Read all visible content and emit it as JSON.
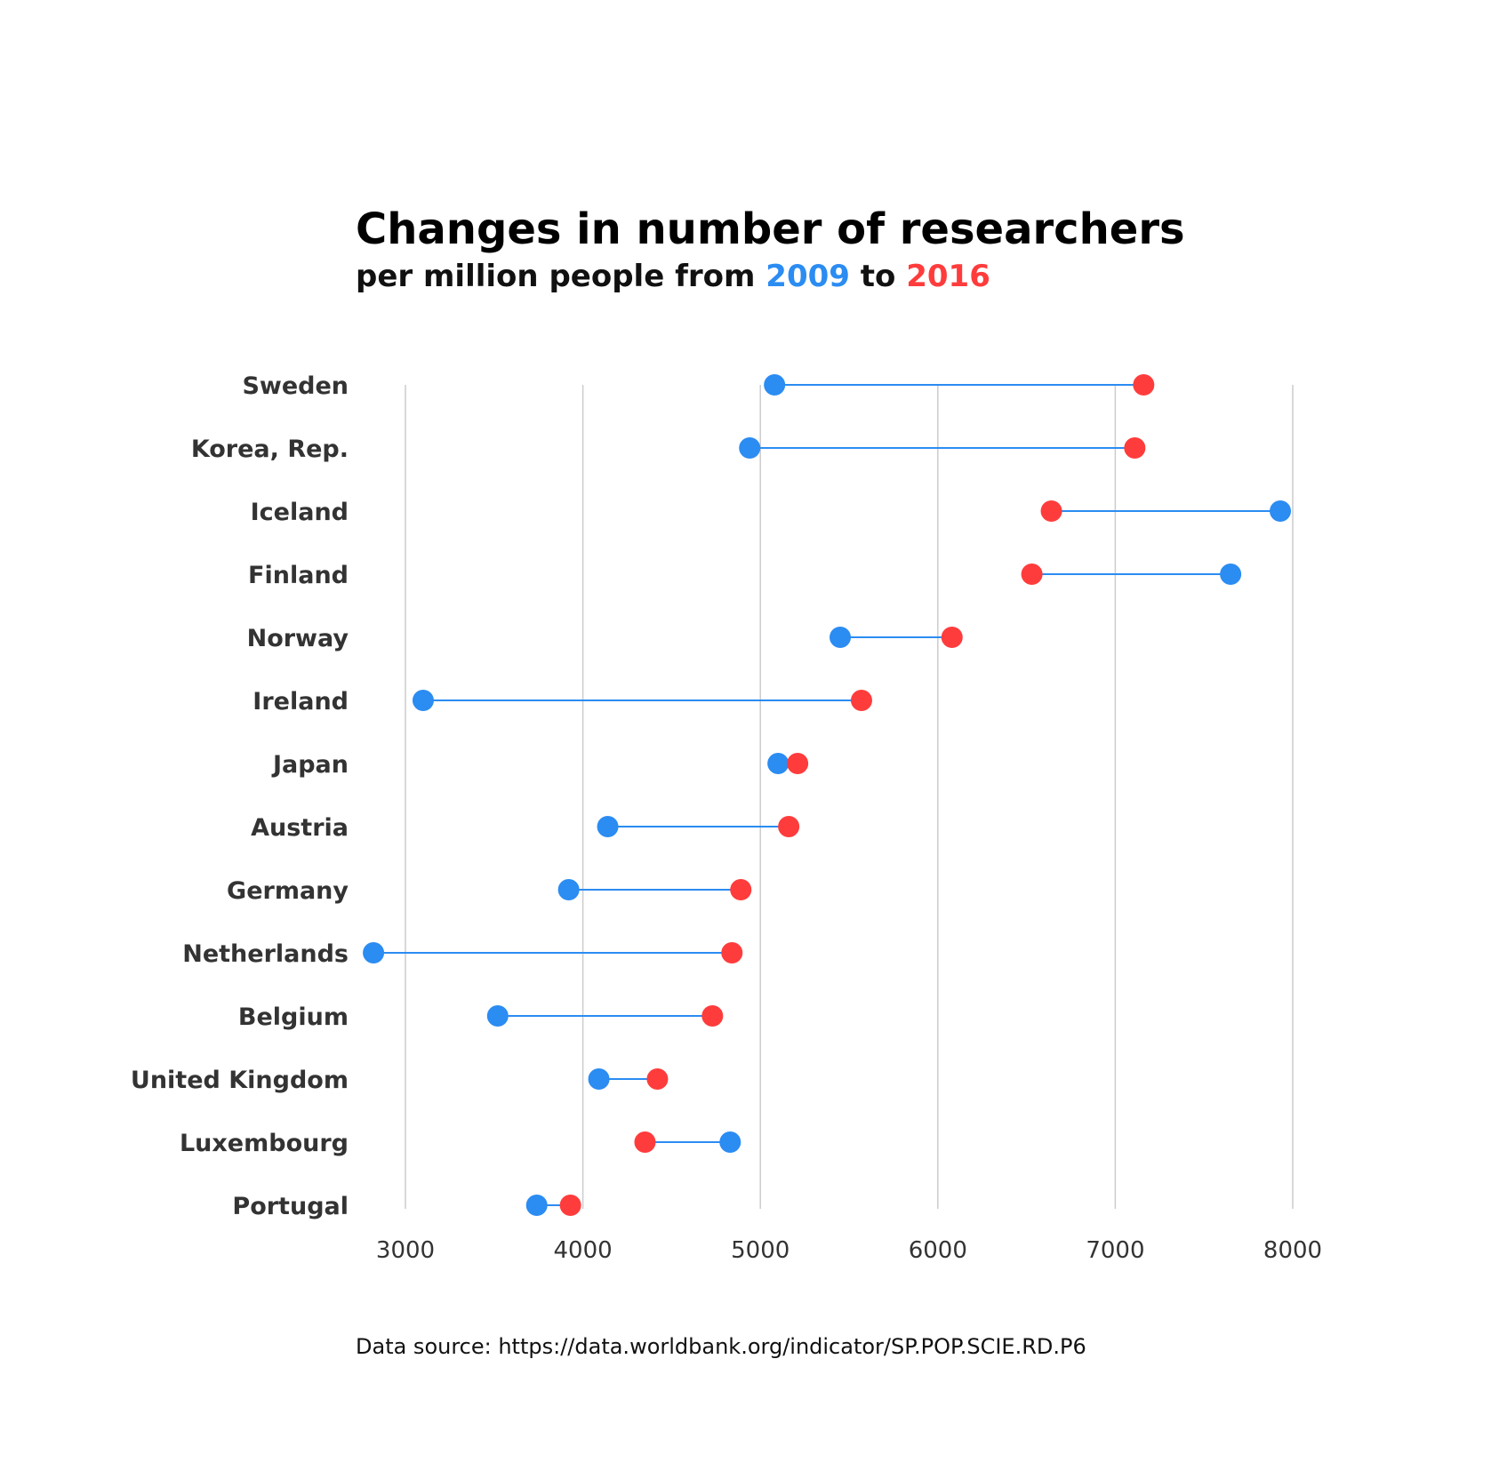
{
  "chart_data": {
    "type": "dumbbell",
    "title": "Changes in number of researchers",
    "subtitle": {
      "prefix": "per million people from ",
      "year1": "2009",
      "middle": " to ",
      "year2": "2016"
    },
    "xlim": [
      2700,
      8200
    ],
    "xticks": [
      3000,
      4000,
      5000,
      6000,
      7000,
      8000
    ],
    "categories": [
      "Sweden",
      "Korea, Rep.",
      "Iceland",
      "Finland",
      "Norway",
      "Ireland",
      "Japan",
      "Austria",
      "Germany",
      "Netherlands",
      "Belgium",
      "United Kingdom",
      "Luxembourg",
      "Portugal"
    ],
    "series": [
      {
        "name": "2009",
        "color": "#2b8cf2",
        "values": [
          5080,
          4940,
          7930,
          7650,
          5450,
          3100,
          5100,
          4140,
          3920,
          2820,
          3520,
          4090,
          4830,
          3740
        ]
      },
      {
        "name": "2016",
        "color": "#ff3c3c",
        "values": [
          7160,
          7110,
          6640,
          6530,
          6080,
          5570,
          5210,
          5160,
          4890,
          4840,
          4730,
          4420,
          4350,
          3930
        ]
      }
    ],
    "grid": true,
    "legend": "subtitle",
    "line_color": "#2b8cf2"
  },
  "source_text": "Data source:  https://data.worldbank.org/indicator/SP.POP.SCIE.RD.P6"
}
